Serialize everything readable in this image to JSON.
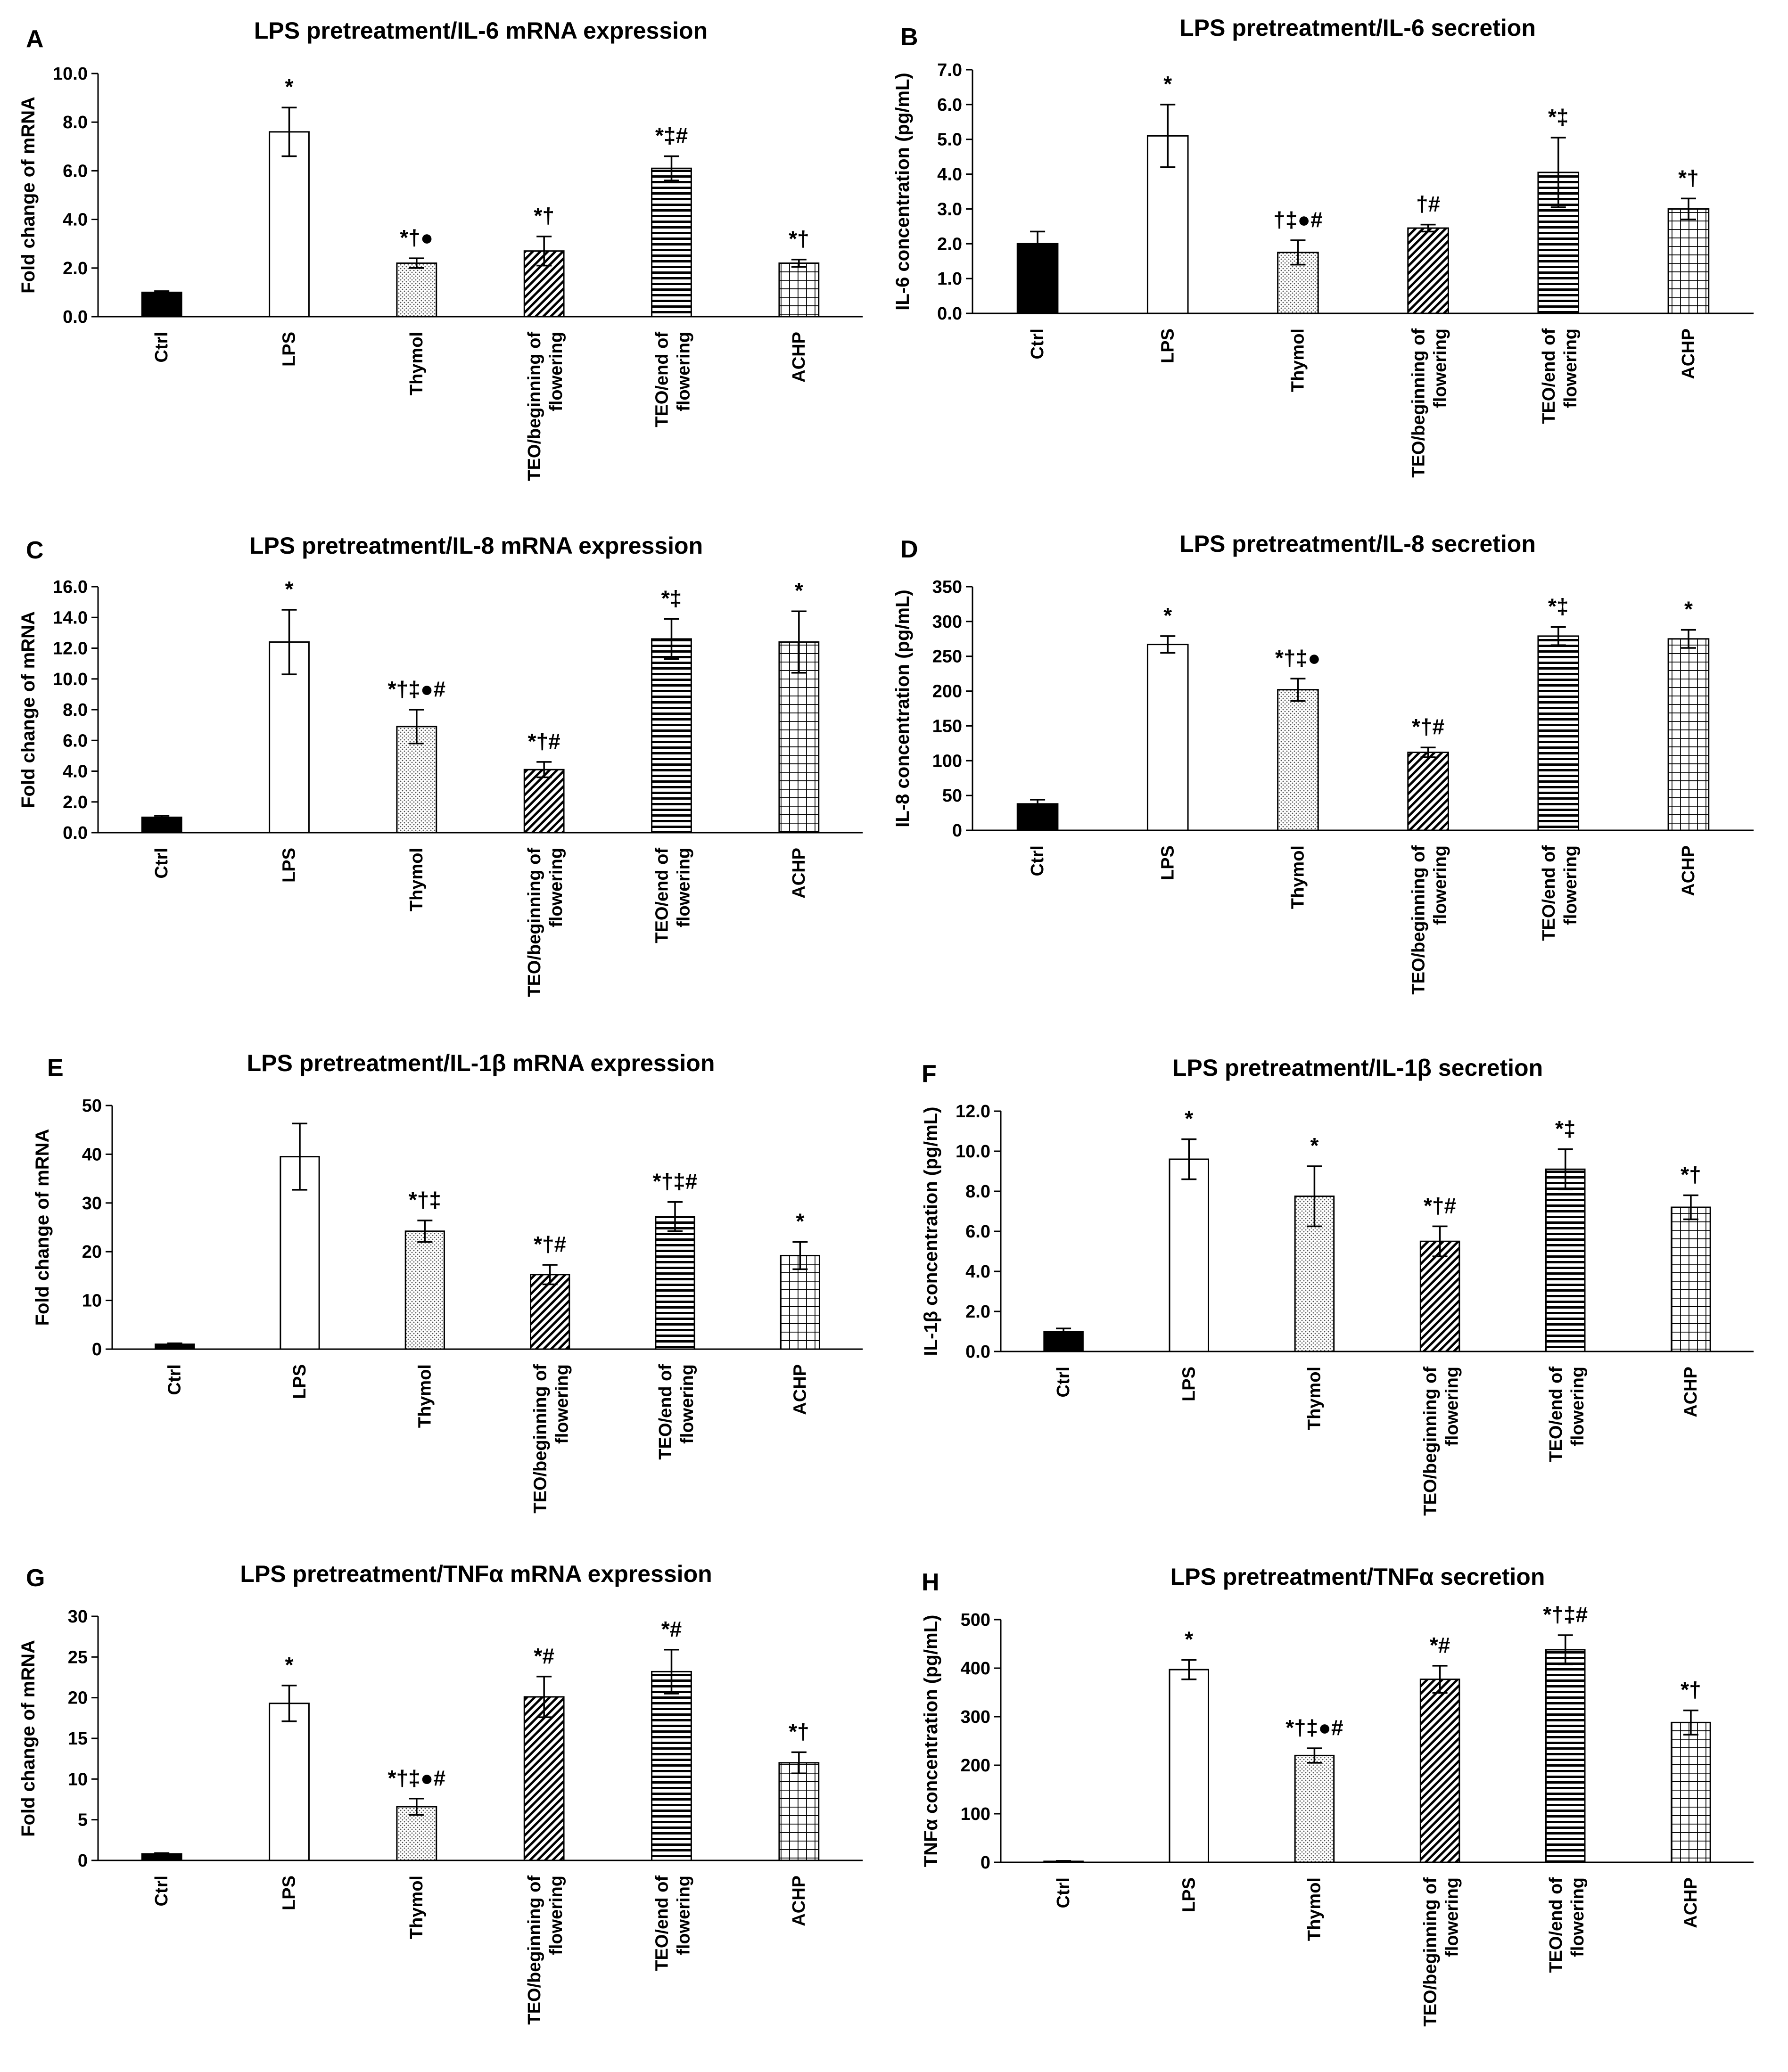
{
  "figure": {
    "categories": [
      "Ctrl",
      "LPS",
      "Thymol",
      "TEO/beginning of flowering",
      "TEO/end of flowering",
      "ACHP"
    ],
    "category_lines": [
      [
        "Ctrl"
      ],
      [
        "LPS"
      ],
      [
        "Thymol"
      ],
      [
        "TEO/beginning of",
        "flowering"
      ],
      [
        "TEO/end of",
        "flowering"
      ],
      [
        "ACHP"
      ]
    ],
    "bar_styles": [
      "solid-black",
      "white",
      "dotted",
      "diagonal-hatch",
      "horizontal-stripes",
      "grid"
    ]
  },
  "chart_data": [
    {
      "panel": "A",
      "type": "bar",
      "title": "LPS pretreatment/IL-6 mRNA expression",
      "ylabel": "Fold change of mRNA",
      "ylim": [
        0,
        10
      ],
      "ytick_labels": [
        "0.0",
        "2.0",
        "4.0",
        "6.0",
        "8.0",
        "10.0"
      ],
      "values": [
        1.0,
        7.6,
        2.2,
        2.7,
        6.1,
        2.2
      ],
      "errors": [
        0.05,
        1.0,
        0.2,
        0.6,
        0.5,
        0.15
      ],
      "annotations": [
        "",
        "*",
        "*†●",
        "*†",
        "*‡#",
        "*†"
      ]
    },
    {
      "panel": "B",
      "type": "bar",
      "title": "LPS pretreatment/IL-6 secretion",
      "ylabel": "IL-6 concentration (pg/mL)",
      "ylim": [
        0,
        7
      ],
      "ytick_labels": [
        "0.0",
        "1.0",
        "2.0",
        "3.0",
        "4.0",
        "5.0",
        "6.0",
        "7.0"
      ],
      "values": [
        2.0,
        5.1,
        1.75,
        2.45,
        4.05,
        3.0
      ],
      "errors": [
        0.35,
        0.9,
        0.35,
        0.1,
        1.0,
        0.3
      ],
      "annotations": [
        "",
        "*",
        "†‡●#",
        "†#",
        "*‡",
        "*†"
      ]
    },
    {
      "panel": "C",
      "type": "bar",
      "title": "LPS pretreatment/IL-8 mRNA expression",
      "ylabel": "Fold change of mRNA",
      "ylim": [
        0,
        16
      ],
      "ytick_labels": [
        "0.0",
        "2.0",
        "4.0",
        "6.0",
        "8.0",
        "10.0",
        "12.0",
        "14.0",
        "16.0"
      ],
      "values": [
        1.0,
        12.4,
        6.9,
        4.1,
        12.6,
        12.4
      ],
      "errors": [
        0.1,
        2.1,
        1.1,
        0.5,
        1.3,
        2.0
      ],
      "annotations": [
        "",
        "*",
        "*†‡●#",
        "*†#",
        "*‡",
        "*"
      ]
    },
    {
      "panel": "D",
      "type": "bar",
      "title": "LPS pretreatment/IL-8 secretion",
      "ylabel": "IL-8 concentration (pg/mL)",
      "ylim": [
        0,
        350
      ],
      "ytick_labels": [
        "0",
        "50",
        "100",
        "150",
        "200",
        "250",
        "300",
        "350"
      ],
      "values": [
        38,
        267,
        202,
        112,
        279,
        275
      ],
      "errors": [
        6,
        12,
        16,
        7,
        13,
        13
      ],
      "annotations": [
        "",
        "*",
        "*†‡●",
        "*†#",
        "*‡",
        "*"
      ]
    },
    {
      "panel": "E",
      "type": "bar",
      "title": "LPS pretreatment/IL-1β mRNA expression",
      "ylabel": "Fold change of mRNA",
      "ylim": [
        0,
        50
      ],
      "ytick_labels": [
        "0",
        "10",
        "20",
        "30",
        "40",
        "50"
      ],
      "values": [
        1,
        39.5,
        24.2,
        15.3,
        27.2,
        19.2
      ],
      "errors": [
        0.2,
        6.8,
        2.2,
        2.0,
        3.0,
        2.8
      ],
      "annotations": [
        "",
        "",
        "*†‡",
        "*†#",
        "*†‡#",
        "*"
      ]
    },
    {
      "panel": "F",
      "type": "bar",
      "title": "LPS pretreatment/IL-1β secretion",
      "ylabel": "IL-1β concentration (pg/mL)",
      "ylim": [
        0,
        12
      ],
      "ytick_labels": [
        "0.0",
        "2.0",
        "4.0",
        "6.0",
        "8.0",
        "10.0",
        "12.0"
      ],
      "values": [
        1.0,
        9.6,
        7.75,
        5.5,
        9.1,
        7.2
      ],
      "errors": [
        0.15,
        1.0,
        1.5,
        0.75,
        1.0,
        0.6
      ],
      "annotations": [
        "",
        "*",
        "*",
        "*†#",
        "*‡",
        "*†"
      ]
    },
    {
      "panel": "G",
      "type": "bar",
      "title": "LPS pretreatment/TNFα mRNA expression",
      "ylabel": "Fold change of mRNA",
      "ylim": [
        0,
        30
      ],
      "ytick_labels": [
        "0",
        "5",
        "10",
        "15",
        "20",
        "25",
        "30"
      ],
      "values": [
        0.8,
        19.3,
        6.6,
        20.1,
        23.2,
        12.0
      ],
      "errors": [
        0.1,
        2.2,
        1.0,
        2.5,
        2.7,
        1.3
      ],
      "annotations": [
        "",
        "*",
        "*†‡●#",
        "*#",
        "*#",
        "*†"
      ]
    },
    {
      "panel": "H",
      "type": "bar",
      "title": "LPS pretreatment/TNFα secretion",
      "ylabel": "TNFα concentration (pg/mL)",
      "ylim": [
        0,
        500
      ],
      "ytick_labels": [
        "0",
        "100",
        "200",
        "300",
        "400",
        "500"
      ],
      "values": [
        2,
        397,
        220,
        377,
        438,
        288
      ],
      "errors": [
        1,
        20,
        15,
        28,
        30,
        25
      ],
      "annotations": [
        "",
        "*",
        "*†‡●#",
        "*#",
        "*†‡#",
        "*†"
      ]
    }
  ]
}
